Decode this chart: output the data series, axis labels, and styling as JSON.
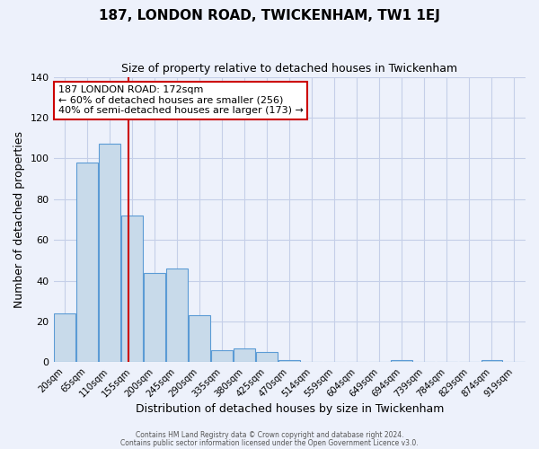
{
  "title": "187, LONDON ROAD, TWICKENHAM, TW1 1EJ",
  "subtitle": "Size of property relative to detached houses in Twickenham",
  "xlabel": "Distribution of detached houses by size in Twickenham",
  "ylabel": "Number of detached properties",
  "bar_labels": [
    "20sqm",
    "65sqm",
    "110sqm",
    "155sqm",
    "200sqm",
    "245sqm",
    "290sqm",
    "335sqm",
    "380sqm",
    "425sqm",
    "470sqm",
    "514sqm",
    "559sqm",
    "604sqm",
    "649sqm",
    "694sqm",
    "739sqm",
    "784sqm",
    "829sqm",
    "874sqm",
    "919sqm"
  ],
  "bar_values": [
    24,
    98,
    107,
    72,
    44,
    46,
    23,
    6,
    7,
    5,
    1,
    0,
    0,
    0,
    0,
    1,
    0,
    0,
    0,
    1,
    0
  ],
  "bar_color": "#c8daea",
  "bar_edge_color": "#5b9bd5",
  "background_color": "#edf1fb",
  "grid_color": "#c5cfe8",
  "vline_x": 2.85,
  "vline_color": "#cc0000",
  "annotation_title": "187 LONDON ROAD: 172sqm",
  "annotation_line1": "← 60% of detached houses are smaller (256)",
  "annotation_line2": "40% of semi-detached houses are larger (173) →",
  "annotation_box_color": "#ffffff",
  "annotation_box_edge": "#cc0000",
  "ylim": [
    0,
    140
  ],
  "yticks": [
    0,
    20,
    40,
    60,
    80,
    100,
    120,
    140
  ],
  "footer1": "Contains HM Land Registry data © Crown copyright and database right 2024.",
  "footer2": "Contains public sector information licensed under the Open Government Licence v3.0."
}
